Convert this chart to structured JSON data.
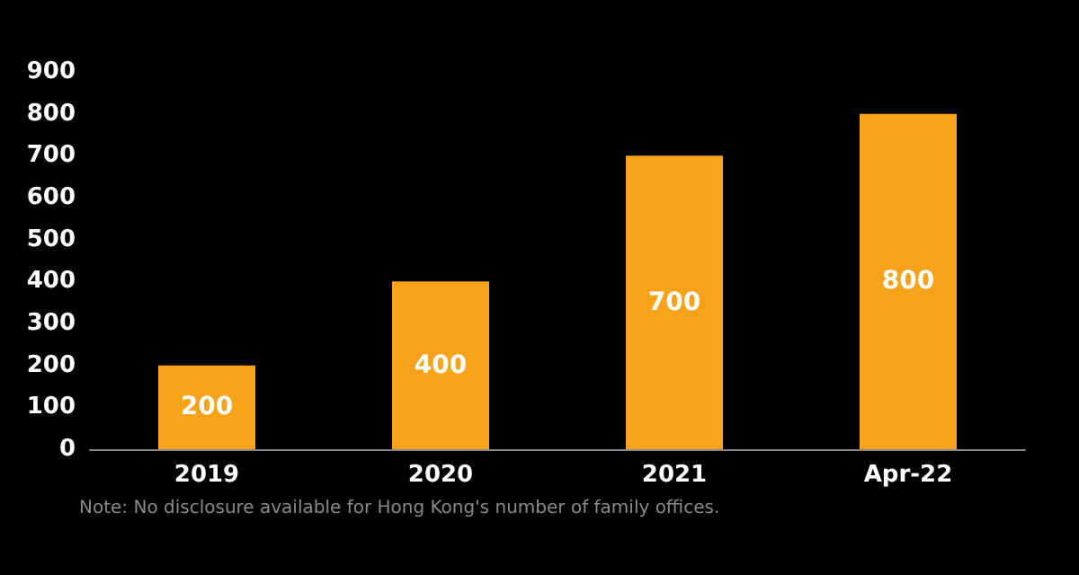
{
  "chart_data": {
    "type": "bar",
    "categories": [
      "2019",
      "2020",
      "2021",
      "Apr-22"
    ],
    "values": [
      200,
      400,
      700,
      800
    ],
    "color": "#f7a21b",
    "ylim": [
      0,
      900
    ],
    "yticks": [
      0,
      100,
      200,
      300,
      400,
      500,
      600,
      700,
      800,
      900
    ],
    "grid": false,
    "data_labels": true,
    "annotations": [
      "Note: No disclosure available for Hong Kong's number of family offices."
    ]
  }
}
